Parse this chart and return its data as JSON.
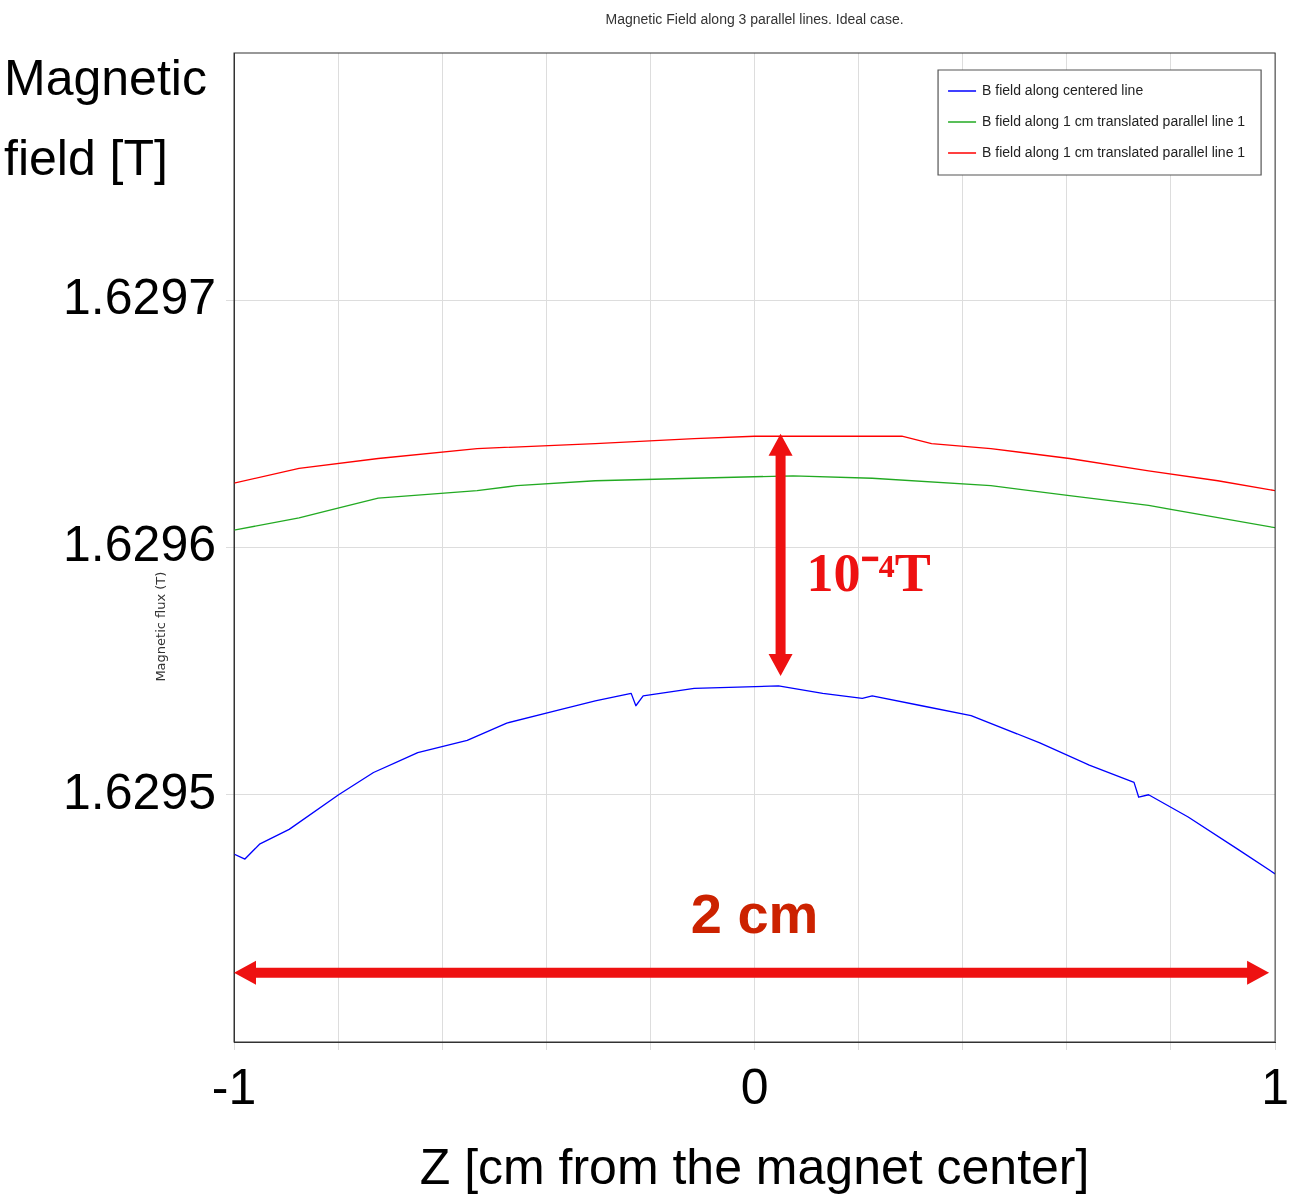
{
  "chart_data": {
    "type": "line",
    "title": "Magnetic Field along 3 parallel lines. Ideal case.",
    "xlabel": "Z [cm from the magnet center]",
    "ylabel": "Magnetic field [T]",
    "annotations": [
      "Magnetic flux (T)",
      "10⁻⁴T",
      "2 cm"
    ],
    "xlim": [
      -1,
      1
    ],
    "ylim": [
      1.6294,
      1.6298
    ],
    "xticks": [
      {
        "value": -1,
        "label": "-1"
      },
      {
        "value": -0.8,
        "label": null
      },
      {
        "value": -0.6,
        "label": null
      },
      {
        "value": -0.4,
        "label": null
      },
      {
        "value": -0.2,
        "label": null
      },
      {
        "value": 0,
        "label": "0"
      },
      {
        "value": 0.2,
        "label": null
      },
      {
        "value": 0.4,
        "label": null
      },
      {
        "value": 0.6,
        "label": null
      },
      {
        "value": 0.8,
        "label": null
      },
      {
        "value": 1,
        "label": "1"
      }
    ],
    "yticks": [
      1.6295,
      1.6296,
      1.6297
    ],
    "grid": true,
    "legend": "top right",
    "marker": "none",
    "line_style": "solid",
    "series": [
      {
        "name": "B field along centered line",
        "color": "#0000ff",
        "x": [
          -1,
          -0.979,
          -0.951,
          -0.894,
          -0.799,
          -0.732,
          -0.647,
          -0.552,
          -0.476,
          -0.381,
          -0.306,
          -0.237,
          -0.228,
          -0.214,
          -0.116,
          0.046,
          0.131,
          0.207,
          0.226,
          0.321,
          0.416,
          0.548,
          0.643,
          0.729,
          0.738,
          0.757,
          0.833,
          0.928,
          1
        ],
        "values": [
          1.629476,
          1.629474,
          1.62948,
          1.629486,
          1.6295,
          1.629509,
          1.629517,
          1.629522,
          1.629529,
          1.629534,
          1.629538,
          1.629541,
          1.629536,
          1.62954,
          1.629543,
          1.629544,
          1.629541,
          1.629539,
          1.62954,
          1.629536,
          1.629532,
          1.629521,
          1.629512,
          1.629505,
          1.629499,
          1.6295,
          1.629491,
          1.629478,
          1.629468
        ]
      },
      {
        "name": "B field along 1 cm translated parallel line 1",
        "color": "#22aa22",
        "x": [
          -1,
          -0.875,
          -0.723,
          -0.533,
          -0.457,
          -0.306,
          -0.116,
          0.074,
          0.226,
          0.454,
          0.605,
          0.757,
          1
        ],
        "values": [
          1.629607,
          1.629612,
          1.62962,
          1.629623,
          1.629625,
          1.629627,
          1.629628,
          1.629629,
          1.629628,
          1.629625,
          1.629621,
          1.629617,
          1.629608
        ]
      },
      {
        "name": "B field along 1 cm translated parallel line 1",
        "color": "#ff0000",
        "x": [
          -1,
          -0.875,
          -0.723,
          -0.533,
          -0.306,
          -0.116,
          0,
          0.074,
          0.283,
          0.34,
          0.454,
          0.605,
          0.757,
          0.89,
          1
        ],
        "values": [
          1.629626,
          1.629632,
          1.629636,
          1.62964,
          1.629642,
          1.629644,
          1.629645,
          1.629645,
          1.629645,
          1.629642,
          1.62964,
          1.629636,
          1.629631,
          1.629627,
          1.629623
        ]
      }
    ]
  }
}
